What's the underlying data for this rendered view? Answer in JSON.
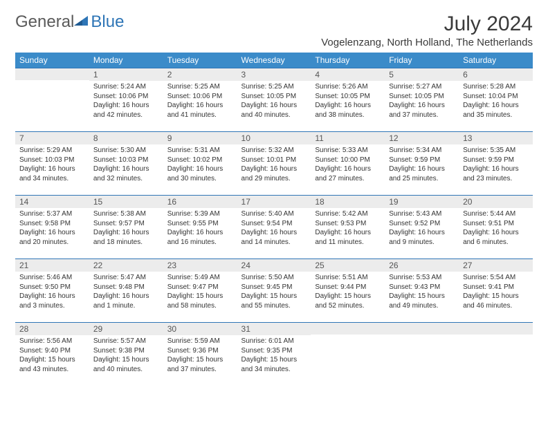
{
  "brand": {
    "part1": "General",
    "part2": "Blue"
  },
  "title": "July 2024",
  "location": "Vogelenzang, North Holland, The Netherlands",
  "colors": {
    "header_bg": "#3b8bc9",
    "header_text": "#ffffff",
    "border": "#2e75b6",
    "daynum_bg": "#ececec",
    "logo_grey": "#5a5a5a",
    "logo_blue": "#2e75b6"
  },
  "day_headers": [
    "Sunday",
    "Monday",
    "Tuesday",
    "Wednesday",
    "Thursday",
    "Friday",
    "Saturday"
  ],
  "weeks": [
    [
      {
        "n": "",
        "sr": "",
        "ss": "",
        "dl": ""
      },
      {
        "n": "1",
        "sr": "Sunrise: 5:24 AM",
        "ss": "Sunset: 10:06 PM",
        "dl": "Daylight: 16 hours and 42 minutes."
      },
      {
        "n": "2",
        "sr": "Sunrise: 5:25 AM",
        "ss": "Sunset: 10:06 PM",
        "dl": "Daylight: 16 hours and 41 minutes."
      },
      {
        "n": "3",
        "sr": "Sunrise: 5:25 AM",
        "ss": "Sunset: 10:05 PM",
        "dl": "Daylight: 16 hours and 40 minutes."
      },
      {
        "n": "4",
        "sr": "Sunrise: 5:26 AM",
        "ss": "Sunset: 10:05 PM",
        "dl": "Daylight: 16 hours and 38 minutes."
      },
      {
        "n": "5",
        "sr": "Sunrise: 5:27 AM",
        "ss": "Sunset: 10:05 PM",
        "dl": "Daylight: 16 hours and 37 minutes."
      },
      {
        "n": "6",
        "sr": "Sunrise: 5:28 AM",
        "ss": "Sunset: 10:04 PM",
        "dl": "Daylight: 16 hours and 35 minutes."
      }
    ],
    [
      {
        "n": "7",
        "sr": "Sunrise: 5:29 AM",
        "ss": "Sunset: 10:03 PM",
        "dl": "Daylight: 16 hours and 34 minutes."
      },
      {
        "n": "8",
        "sr": "Sunrise: 5:30 AM",
        "ss": "Sunset: 10:03 PM",
        "dl": "Daylight: 16 hours and 32 minutes."
      },
      {
        "n": "9",
        "sr": "Sunrise: 5:31 AM",
        "ss": "Sunset: 10:02 PM",
        "dl": "Daylight: 16 hours and 30 minutes."
      },
      {
        "n": "10",
        "sr": "Sunrise: 5:32 AM",
        "ss": "Sunset: 10:01 PM",
        "dl": "Daylight: 16 hours and 29 minutes."
      },
      {
        "n": "11",
        "sr": "Sunrise: 5:33 AM",
        "ss": "Sunset: 10:00 PM",
        "dl": "Daylight: 16 hours and 27 minutes."
      },
      {
        "n": "12",
        "sr": "Sunrise: 5:34 AM",
        "ss": "Sunset: 9:59 PM",
        "dl": "Daylight: 16 hours and 25 minutes."
      },
      {
        "n": "13",
        "sr": "Sunrise: 5:35 AM",
        "ss": "Sunset: 9:59 PM",
        "dl": "Daylight: 16 hours and 23 minutes."
      }
    ],
    [
      {
        "n": "14",
        "sr": "Sunrise: 5:37 AM",
        "ss": "Sunset: 9:58 PM",
        "dl": "Daylight: 16 hours and 20 minutes."
      },
      {
        "n": "15",
        "sr": "Sunrise: 5:38 AM",
        "ss": "Sunset: 9:57 PM",
        "dl": "Daylight: 16 hours and 18 minutes."
      },
      {
        "n": "16",
        "sr": "Sunrise: 5:39 AM",
        "ss": "Sunset: 9:55 PM",
        "dl": "Daylight: 16 hours and 16 minutes."
      },
      {
        "n": "17",
        "sr": "Sunrise: 5:40 AM",
        "ss": "Sunset: 9:54 PM",
        "dl": "Daylight: 16 hours and 14 minutes."
      },
      {
        "n": "18",
        "sr": "Sunrise: 5:42 AM",
        "ss": "Sunset: 9:53 PM",
        "dl": "Daylight: 16 hours and 11 minutes."
      },
      {
        "n": "19",
        "sr": "Sunrise: 5:43 AM",
        "ss": "Sunset: 9:52 PM",
        "dl": "Daylight: 16 hours and 9 minutes."
      },
      {
        "n": "20",
        "sr": "Sunrise: 5:44 AM",
        "ss": "Sunset: 9:51 PM",
        "dl": "Daylight: 16 hours and 6 minutes."
      }
    ],
    [
      {
        "n": "21",
        "sr": "Sunrise: 5:46 AM",
        "ss": "Sunset: 9:50 PM",
        "dl": "Daylight: 16 hours and 3 minutes."
      },
      {
        "n": "22",
        "sr": "Sunrise: 5:47 AM",
        "ss": "Sunset: 9:48 PM",
        "dl": "Daylight: 16 hours and 1 minute."
      },
      {
        "n": "23",
        "sr": "Sunrise: 5:49 AM",
        "ss": "Sunset: 9:47 PM",
        "dl": "Daylight: 15 hours and 58 minutes."
      },
      {
        "n": "24",
        "sr": "Sunrise: 5:50 AM",
        "ss": "Sunset: 9:45 PM",
        "dl": "Daylight: 15 hours and 55 minutes."
      },
      {
        "n": "25",
        "sr": "Sunrise: 5:51 AM",
        "ss": "Sunset: 9:44 PM",
        "dl": "Daylight: 15 hours and 52 minutes."
      },
      {
        "n": "26",
        "sr": "Sunrise: 5:53 AM",
        "ss": "Sunset: 9:43 PM",
        "dl": "Daylight: 15 hours and 49 minutes."
      },
      {
        "n": "27",
        "sr": "Sunrise: 5:54 AM",
        "ss": "Sunset: 9:41 PM",
        "dl": "Daylight: 15 hours and 46 minutes."
      }
    ],
    [
      {
        "n": "28",
        "sr": "Sunrise: 5:56 AM",
        "ss": "Sunset: 9:40 PM",
        "dl": "Daylight: 15 hours and 43 minutes."
      },
      {
        "n": "29",
        "sr": "Sunrise: 5:57 AM",
        "ss": "Sunset: 9:38 PM",
        "dl": "Daylight: 15 hours and 40 minutes."
      },
      {
        "n": "30",
        "sr": "Sunrise: 5:59 AM",
        "ss": "Sunset: 9:36 PM",
        "dl": "Daylight: 15 hours and 37 minutes."
      },
      {
        "n": "31",
        "sr": "Sunrise: 6:01 AM",
        "ss": "Sunset: 9:35 PM",
        "dl": "Daylight: 15 hours and 34 minutes."
      },
      {
        "n": "",
        "sr": "",
        "ss": "",
        "dl": ""
      },
      {
        "n": "",
        "sr": "",
        "ss": "",
        "dl": ""
      },
      {
        "n": "",
        "sr": "",
        "ss": "",
        "dl": ""
      }
    ]
  ]
}
